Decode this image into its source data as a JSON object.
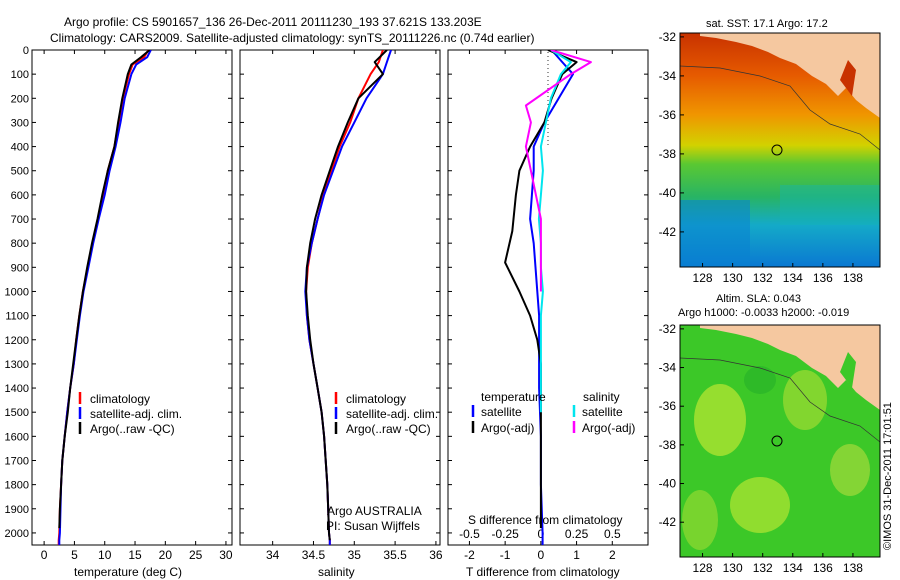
{
  "title_line1": "Argo profile: CS 5901657_136 26-Dec-2011 20111230_193 37.621S 133.203E",
  "title_line2": "Climatology: CARS2009. Satellite-adjusted climatology: synTS_20111226.nc (0.74d earlier)",
  "depth_ticks": [
    "0",
    "100",
    "200",
    "300",
    "400",
    "500",
    "600",
    "700",
    "800",
    "900",
    "1000",
    "1100",
    "1200",
    "1300",
    "1400",
    "1500",
    "1600",
    "1700",
    "1800",
    "1900",
    "2000"
  ],
  "colors": {
    "climatology": "#ff0000",
    "satellite": "#0000ff",
    "argo": "#000000",
    "sat_salinity": "#00e5ee",
    "argo_salinity": "#ff00ff",
    "land": "#f5c8a0",
    "ocean_sla": "#3cc828"
  },
  "chart_data": [
    {
      "type": "line",
      "name": "temperature",
      "xlabel": "temperature (deg C)",
      "xticks": [
        "0",
        "5",
        "10",
        "15",
        "20",
        "25",
        "30"
      ],
      "xlim": [
        -2,
        31
      ],
      "ylim": [
        0,
        2050
      ],
      "legend": [
        "climatology",
        "satellite-adj. clim.",
        "Argo(..raw -QC)"
      ],
      "series": [
        {
          "name": "climatology",
          "color": "#ff0000",
          "x": [
            17.2,
            16.5,
            14.6,
            14.0,
            13.0,
            12.3,
            11.6,
            10.5,
            9.8,
            8.9,
            8.0,
            7.2,
            6.4,
            5.8,
            5.3,
            4.9,
            4.3,
            3.8,
            3.4,
            3.0,
            2.8,
            2.6,
            2.5,
            2.4,
            2.4
          ],
          "y": [
            0,
            30,
            60,
            100,
            200,
            300,
            400,
            500,
            600,
            700,
            800,
            900,
            1000,
            1100,
            1200,
            1300,
            1400,
            1500,
            1600,
            1700,
            1800,
            1900,
            2000,
            2030,
            2050
          ]
        },
        {
          "name": "satellite-adj. clim.",
          "color": "#0000ff",
          "x": [
            17.6,
            17.0,
            15.2,
            14.4,
            13.3,
            12.6,
            11.8,
            10.8,
            10.0,
            9.0,
            8.1,
            7.3,
            6.5,
            5.9,
            5.4,
            4.9,
            4.3,
            3.8,
            3.4,
            3.0,
            2.8,
            2.7,
            2.6,
            2.5,
            2.5
          ],
          "y": [
            0,
            30,
            60,
            100,
            200,
            300,
            400,
            500,
            600,
            700,
            800,
            900,
            1000,
            1100,
            1200,
            1300,
            1400,
            1500,
            1600,
            1700,
            1800,
            1900,
            2000,
            2030,
            2050
          ]
        },
        {
          "name": "Argo(..raw -QC)",
          "color": "#000000",
          "x": [
            17.4,
            16.0,
            14.4,
            13.8,
            12.9,
            12.2,
            11.6,
            10.5,
            9.6,
            8.8,
            7.9,
            7.1,
            6.4,
            5.8,
            5.3,
            4.8,
            4.3,
            3.9,
            3.4,
            3.0,
            2.8,
            2.6,
            2.5
          ],
          "y": [
            0,
            30,
            60,
            100,
            200,
            300,
            400,
            500,
            600,
            700,
            800,
            900,
            1000,
            1100,
            1200,
            1300,
            1400,
            1500,
            1600,
            1700,
            1800,
            1900,
            1980
          ]
        }
      ]
    },
    {
      "type": "line",
      "name": "salinity",
      "xlabel": "salinity",
      "xticks": [
        "34",
        "34.5",
        "35",
        "35.5",
        "36"
      ],
      "xlim": [
        33.6,
        36.05
      ],
      "ylim": [
        0,
        2050
      ],
      "legend": [
        "climatology",
        "satellite-adj. clim.",
        "Argo(..raw -QC)"
      ],
      "annotation": [
        "Argo AUSTRALIA",
        "PI: Susan Wijffels"
      ],
      "series": [
        {
          "name": "climatology",
          "color": "#ff0000",
          "x": [
            35.35,
            35.3,
            35.2,
            35.05,
            34.95,
            34.82,
            34.72,
            34.62,
            34.55,
            34.48,
            34.43,
            34.41,
            34.42,
            34.45,
            34.5,
            34.55,
            34.6,
            34.63,
            34.65,
            34.67,
            34.68,
            34.69,
            34.7,
            34.7
          ],
          "y": [
            0,
            50,
            100,
            200,
            300,
            400,
            500,
            600,
            700,
            800,
            900,
            1000,
            1100,
            1200,
            1300,
            1400,
            1500,
            1600,
            1700,
            1800,
            1900,
            2000,
            2030,
            2050
          ]
        },
        {
          "name": "satellite-adj. clim.",
          "color": "#0000ff",
          "x": [
            35.45,
            35.4,
            35.35,
            35.15,
            35.0,
            34.85,
            34.74,
            34.63,
            34.55,
            34.48,
            34.42,
            34.4,
            34.42,
            34.45,
            34.5,
            34.55,
            34.6,
            34.63,
            34.65,
            34.67,
            34.68,
            34.69,
            34.7,
            34.7
          ],
          "y": [
            0,
            50,
            100,
            200,
            300,
            400,
            500,
            600,
            700,
            800,
            900,
            1000,
            1100,
            1200,
            1300,
            1400,
            1500,
            1600,
            1700,
            1800,
            1900,
            2000,
            2030,
            2050
          ]
        },
        {
          "name": "Argo(..raw -QC)",
          "color": "#000000",
          "x": [
            35.4,
            35.25,
            35.35,
            35.05,
            34.92,
            34.8,
            34.7,
            34.6,
            34.52,
            34.46,
            34.42,
            34.41,
            34.43,
            34.46,
            34.5,
            34.55,
            34.6,
            34.63,
            34.65,
            34.67,
            34.68,
            34.69,
            34.7
          ],
          "y": [
            0,
            50,
            100,
            200,
            300,
            400,
            500,
            600,
            700,
            800,
            900,
            1000,
            1100,
            1200,
            1300,
            1400,
            1500,
            1600,
            1700,
            1800,
            1900,
            2000,
            2030
          ]
        }
      ]
    },
    {
      "type": "line",
      "name": "differences",
      "xlabel_top": "S difference from climatology",
      "xlabel": "T difference from climatology",
      "xticks_top": [
        "-0.5",
        "-0.25",
        "0",
        "0.25",
        "0.5"
      ],
      "xticks": [
        "-2",
        "-1",
        "0",
        "1",
        "2"
      ],
      "xlim": [
        -2.6,
        3.0
      ],
      "ylim": [
        0,
        2050
      ],
      "legend_left_title": "temperature",
      "legend_right_title": "salinity",
      "legend_left": [
        "satellite",
        "Argo(-adj)"
      ],
      "legend_right": [
        "satellite",
        "Argo(-adj)"
      ],
      "series": [
        {
          "name": "T satellite",
          "color": "#0000ff",
          "x": [
            0.3,
            0.6,
            0.9,
            0.5,
            0.1,
            -0.2,
            -0.2,
            -0.25,
            -0.3,
            -0.2,
            -0.15,
            -0.1,
            -0.05,
            -0.05,
            -0.05,
            0,
            0,
            0.05,
            0.05
          ],
          "y": [
            0,
            50,
            100,
            200,
            300,
            400,
            500,
            600,
            700,
            800,
            900,
            1000,
            1100,
            1200,
            1400,
            1600,
            1800,
            2000,
            2050
          ]
        },
        {
          "name": "T Argo(-adj)",
          "color": "#000000",
          "x": [
            0.2,
            1.0,
            0.6,
            0.3,
            0.1,
            -0.3,
            -0.6,
            -0.7,
            -0.8,
            -1.0,
            -0.6,
            -0.3,
            -0.1,
            0,
            0,
            0,
            0,
            0
          ],
          "y": [
            0,
            50,
            100,
            200,
            300,
            400,
            500,
            600,
            750,
            880,
            1000,
            1100,
            1200,
            1300,
            1500,
            1700,
            1900,
            1980
          ]
        },
        {
          "name": "S satellite",
          "color": "#00e5ee",
          "x": [
            0.1,
            0.3,
            0.2,
            0.1,
            0.05,
            0,
            0.02,
            0,
            -0.02,
            0,
            0,
            0.02,
            0,
            0,
            0
          ],
          "y": [
            0,
            50,
            100,
            200,
            300,
            400,
            500,
            600,
            700,
            800,
            900,
            1000,
            1100,
            1300,
            1500
          ]
        },
        {
          "name": "S Argo(-adj)",
          "color": "#ff00ff",
          "x": [
            0.1,
            0.5,
            0.3,
            -0.15,
            -0.1,
            -0.15,
            -0.1,
            -0.05,
            0,
            0,
            0,
            0
          ],
          "y": [
            0,
            50,
            100,
            230,
            300,
            400,
            500,
            600,
            700,
            800,
            900,
            1000
          ]
        }
      ]
    },
    {
      "type": "heatmap",
      "name": "sst-map",
      "title": "sat. SST: 17.1  Argo: 17.2",
      "xticks": [
        "128",
        "130",
        "132",
        "134",
        "136",
        "138"
      ],
      "yticks": [
        "-32",
        "-34",
        "-36",
        "-38",
        "-40",
        "-42"
      ],
      "xlim": [
        126.5,
        139.8
      ],
      "ylim": [
        -43.8,
        -31.8
      ],
      "marker": {
        "lon": 133.203,
        "lat": -37.621
      }
    },
    {
      "type": "heatmap",
      "name": "sla-map",
      "title_line1": "Altim. SLA: 0.043",
      "title_line2": "Argo h1000: -0.0033 h2000: -0.019",
      "xticks": [
        "128",
        "130",
        "132",
        "134",
        "136",
        "138"
      ],
      "yticks": [
        "-32",
        "-34",
        "-36",
        "-38",
        "-40",
        "-42"
      ],
      "xlim": [
        126.5,
        139.8
      ],
      "ylim": [
        -43.8,
        -31.8
      ],
      "marker": {
        "lon": 133.203,
        "lat": -37.621
      }
    }
  ],
  "side_note": "©IMOS 31-Dec-2011 17:01:51"
}
